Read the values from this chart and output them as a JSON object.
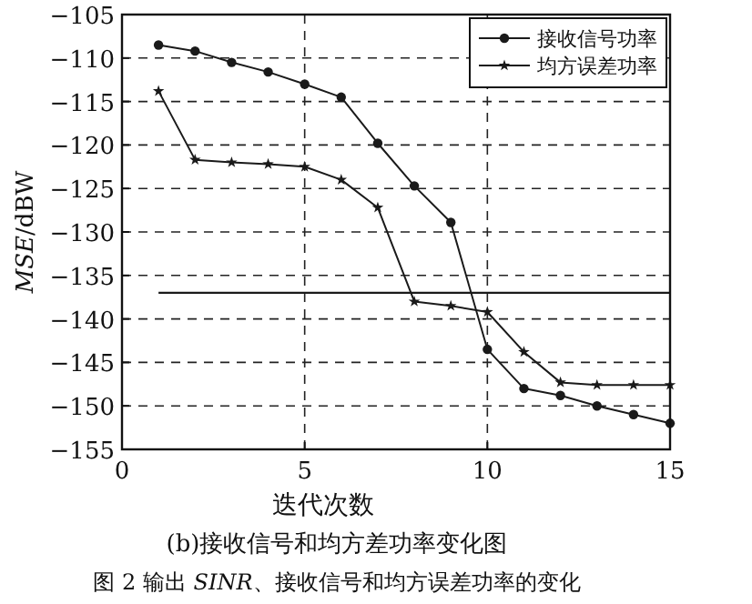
{
  "chart_data": {
    "type": "line",
    "title": "(b)接收信号和均方差功率变化图",
    "xlabel": "迭代次数",
    "ylabel": "*MSE*/dBW",
    "annotations": [
      "图 2  输出 *SINR*、接收信号和均方误差功率的变化"
    ],
    "x": [
      1,
      2,
      3,
      4,
      5,
      6,
      7,
      8,
      9,
      10,
      11,
      12,
      13,
      14,
      15
    ],
    "series": [
      {
        "name": "接收信号功率",
        "color": "#1a1a1a",
        "marker": "circle",
        "values": [
          -108.5,
          -109.2,
          -110.5,
          -111.6,
          -113,
          -114.5,
          -119.8,
          -124.7,
          -128.9,
          -143.5,
          -148,
          -148.8,
          -150,
          -151,
          -152
        ]
      },
      {
        "name": "均方误差功率",
        "color": "#1a1a1a",
        "marker": "star",
        "values": [
          -113.8,
          -121.7,
          -122,
          -122.2,
          -122.5,
          -124,
          -127.2,
          -138,
          -138.5,
          -139.2,
          -143.8,
          -147.3,
          -147.6,
          -147.6,
          -147.6
        ]
      }
    ],
    "ref_lines": [
      {
        "axis": "y",
        "value": -137,
        "color": "#1a1a1a",
        "line_style": "solid"
      }
    ],
    "xlim": [
      0,
      15
    ],
    "xticks": [
      0,
      5,
      10,
      15
    ],
    "ylim": [
      -155,
      -105
    ],
    "yticks": [
      -155,
      -150,
      -145,
      -140,
      -135,
      -130,
      -125,
      -120,
      -115,
      -110,
      -105
    ],
    "grid": true,
    "legend": "top right",
    "line_style": "solid"
  }
}
